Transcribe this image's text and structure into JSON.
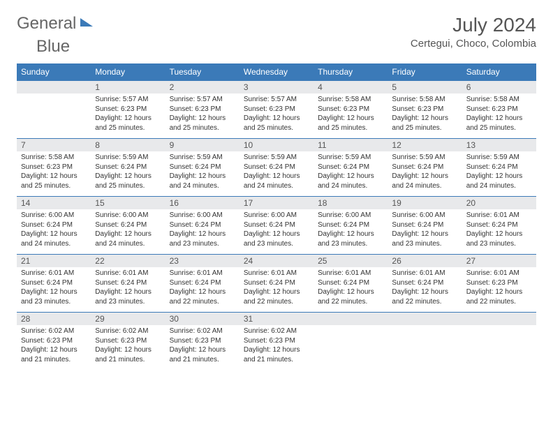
{
  "logo": {
    "word1": "General",
    "word2": "Blue"
  },
  "title": "July 2024",
  "location": "Certegui, Choco, Colombia",
  "colors": {
    "accent": "#3b7ab8",
    "header_bg": "#3b7ab8",
    "daynum_bg": "#e8e9eb",
    "text": "#333333"
  },
  "day_names": [
    "Sunday",
    "Monday",
    "Tuesday",
    "Wednesday",
    "Thursday",
    "Friday",
    "Saturday"
  ],
  "weeks": [
    [
      {
        "n": "",
        "sr": "",
        "ss": "",
        "dl": ""
      },
      {
        "n": "1",
        "sr": "Sunrise: 5:57 AM",
        "ss": "Sunset: 6:23 PM",
        "dl": "Daylight: 12 hours and 25 minutes."
      },
      {
        "n": "2",
        "sr": "Sunrise: 5:57 AM",
        "ss": "Sunset: 6:23 PM",
        "dl": "Daylight: 12 hours and 25 minutes."
      },
      {
        "n": "3",
        "sr": "Sunrise: 5:57 AM",
        "ss": "Sunset: 6:23 PM",
        "dl": "Daylight: 12 hours and 25 minutes."
      },
      {
        "n": "4",
        "sr": "Sunrise: 5:58 AM",
        "ss": "Sunset: 6:23 PM",
        "dl": "Daylight: 12 hours and 25 minutes."
      },
      {
        "n": "5",
        "sr": "Sunrise: 5:58 AM",
        "ss": "Sunset: 6:23 PM",
        "dl": "Daylight: 12 hours and 25 minutes."
      },
      {
        "n": "6",
        "sr": "Sunrise: 5:58 AM",
        "ss": "Sunset: 6:23 PM",
        "dl": "Daylight: 12 hours and 25 minutes."
      }
    ],
    [
      {
        "n": "7",
        "sr": "Sunrise: 5:58 AM",
        "ss": "Sunset: 6:23 PM",
        "dl": "Daylight: 12 hours and 25 minutes."
      },
      {
        "n": "8",
        "sr": "Sunrise: 5:59 AM",
        "ss": "Sunset: 6:24 PM",
        "dl": "Daylight: 12 hours and 25 minutes."
      },
      {
        "n": "9",
        "sr": "Sunrise: 5:59 AM",
        "ss": "Sunset: 6:24 PM",
        "dl": "Daylight: 12 hours and 24 minutes."
      },
      {
        "n": "10",
        "sr": "Sunrise: 5:59 AM",
        "ss": "Sunset: 6:24 PM",
        "dl": "Daylight: 12 hours and 24 minutes."
      },
      {
        "n": "11",
        "sr": "Sunrise: 5:59 AM",
        "ss": "Sunset: 6:24 PM",
        "dl": "Daylight: 12 hours and 24 minutes."
      },
      {
        "n": "12",
        "sr": "Sunrise: 5:59 AM",
        "ss": "Sunset: 6:24 PM",
        "dl": "Daylight: 12 hours and 24 minutes."
      },
      {
        "n": "13",
        "sr": "Sunrise: 5:59 AM",
        "ss": "Sunset: 6:24 PM",
        "dl": "Daylight: 12 hours and 24 minutes."
      }
    ],
    [
      {
        "n": "14",
        "sr": "Sunrise: 6:00 AM",
        "ss": "Sunset: 6:24 PM",
        "dl": "Daylight: 12 hours and 24 minutes."
      },
      {
        "n": "15",
        "sr": "Sunrise: 6:00 AM",
        "ss": "Sunset: 6:24 PM",
        "dl": "Daylight: 12 hours and 24 minutes."
      },
      {
        "n": "16",
        "sr": "Sunrise: 6:00 AM",
        "ss": "Sunset: 6:24 PM",
        "dl": "Daylight: 12 hours and 23 minutes."
      },
      {
        "n": "17",
        "sr": "Sunrise: 6:00 AM",
        "ss": "Sunset: 6:24 PM",
        "dl": "Daylight: 12 hours and 23 minutes."
      },
      {
        "n": "18",
        "sr": "Sunrise: 6:00 AM",
        "ss": "Sunset: 6:24 PM",
        "dl": "Daylight: 12 hours and 23 minutes."
      },
      {
        "n": "19",
        "sr": "Sunrise: 6:00 AM",
        "ss": "Sunset: 6:24 PM",
        "dl": "Daylight: 12 hours and 23 minutes."
      },
      {
        "n": "20",
        "sr": "Sunrise: 6:01 AM",
        "ss": "Sunset: 6:24 PM",
        "dl": "Daylight: 12 hours and 23 minutes."
      }
    ],
    [
      {
        "n": "21",
        "sr": "Sunrise: 6:01 AM",
        "ss": "Sunset: 6:24 PM",
        "dl": "Daylight: 12 hours and 23 minutes."
      },
      {
        "n": "22",
        "sr": "Sunrise: 6:01 AM",
        "ss": "Sunset: 6:24 PM",
        "dl": "Daylight: 12 hours and 23 minutes."
      },
      {
        "n": "23",
        "sr": "Sunrise: 6:01 AM",
        "ss": "Sunset: 6:24 PM",
        "dl": "Daylight: 12 hours and 22 minutes."
      },
      {
        "n": "24",
        "sr": "Sunrise: 6:01 AM",
        "ss": "Sunset: 6:24 PM",
        "dl": "Daylight: 12 hours and 22 minutes."
      },
      {
        "n": "25",
        "sr": "Sunrise: 6:01 AM",
        "ss": "Sunset: 6:24 PM",
        "dl": "Daylight: 12 hours and 22 minutes."
      },
      {
        "n": "26",
        "sr": "Sunrise: 6:01 AM",
        "ss": "Sunset: 6:24 PM",
        "dl": "Daylight: 12 hours and 22 minutes."
      },
      {
        "n": "27",
        "sr": "Sunrise: 6:01 AM",
        "ss": "Sunset: 6:23 PM",
        "dl": "Daylight: 12 hours and 22 minutes."
      }
    ],
    [
      {
        "n": "28",
        "sr": "Sunrise: 6:02 AM",
        "ss": "Sunset: 6:23 PM",
        "dl": "Daylight: 12 hours and 21 minutes."
      },
      {
        "n": "29",
        "sr": "Sunrise: 6:02 AM",
        "ss": "Sunset: 6:23 PM",
        "dl": "Daylight: 12 hours and 21 minutes."
      },
      {
        "n": "30",
        "sr": "Sunrise: 6:02 AM",
        "ss": "Sunset: 6:23 PM",
        "dl": "Daylight: 12 hours and 21 minutes."
      },
      {
        "n": "31",
        "sr": "Sunrise: 6:02 AM",
        "ss": "Sunset: 6:23 PM",
        "dl": "Daylight: 12 hours and 21 minutes."
      },
      {
        "n": "",
        "sr": "",
        "ss": "",
        "dl": ""
      },
      {
        "n": "",
        "sr": "",
        "ss": "",
        "dl": ""
      },
      {
        "n": "",
        "sr": "",
        "ss": "",
        "dl": ""
      }
    ]
  ]
}
